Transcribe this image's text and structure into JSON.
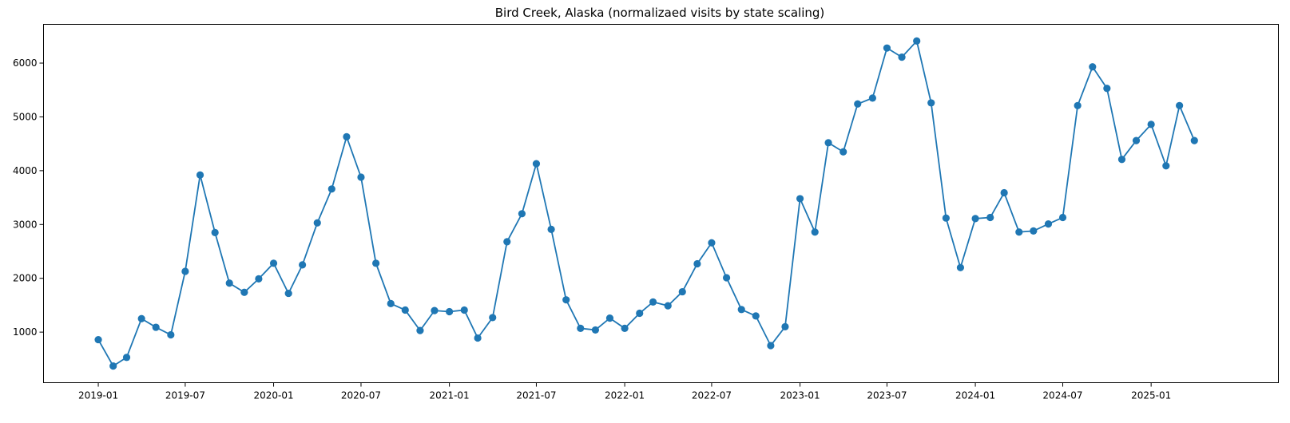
{
  "chart_data": {
    "type": "line",
    "title": "Bird Creek, Alaska (normalizaed visits by state scaling)",
    "xlabel": "",
    "ylabel": "",
    "x_ticks": [
      "2019-01",
      "2019-07",
      "2020-01",
      "2020-07",
      "2021-01",
      "2021-07",
      "2022-01",
      "2022-07",
      "2023-01",
      "2023-07",
      "2024-01",
      "2024-07",
      "2025-01"
    ],
    "y_ticks": [
      1000,
      2000,
      3000,
      4000,
      5000,
      6000
    ],
    "xlim": [
      "2018-09-09",
      "2025-09-23"
    ],
    "ylim": [
      60,
      6720
    ],
    "grid": false,
    "marker": "circle",
    "color": "#1f77b4",
    "series": [
      {
        "x": [
          "2019-01",
          "2019-02",
          "2019-03",
          "2019-04",
          "2019-05",
          "2019-06",
          "2019-07",
          "2019-08",
          "2019-09",
          "2019-10",
          "2019-11",
          "2019-12",
          "2020-01",
          "2020-02",
          "2020-03",
          "2020-04",
          "2020-05",
          "2020-06",
          "2020-07",
          "2020-08",
          "2020-09",
          "2020-10",
          "2020-11",
          "2020-12",
          "2021-01",
          "2021-02",
          "2021-03",
          "2021-04",
          "2021-05",
          "2021-06",
          "2021-07",
          "2021-08",
          "2021-09",
          "2021-10",
          "2021-11",
          "2021-12",
          "2022-01",
          "2022-02",
          "2022-03",
          "2022-04",
          "2022-05",
          "2022-06",
          "2022-07",
          "2022-08",
          "2022-09",
          "2022-10",
          "2022-11",
          "2022-12",
          "2023-01",
          "2023-02",
          "2023-03",
          "2023-04",
          "2023-05",
          "2023-06",
          "2023-07",
          "2023-08",
          "2023-09",
          "2023-10",
          "2023-11",
          "2023-12",
          "2024-01",
          "2024-02",
          "2024-03",
          "2024-04",
          "2024-05",
          "2024-06",
          "2024-07",
          "2024-08",
          "2024-09",
          "2024-10",
          "2024-11",
          "2024-12",
          "2025-01",
          "2025-02",
          "2025-03",
          "2025-04"
        ],
        "values": [
          860,
          370,
          530,
          1250,
          1090,
          950,
          2130,
          3920,
          2850,
          1910,
          1740,
          1990,
          2280,
          1720,
          2250,
          3030,
          3660,
          4630,
          3880,
          2280,
          1530,
          1410,
          1030,
          1400,
          1380,
          1410,
          890,
          1270,
          2680,
          3200,
          4130,
          2910,
          1600,
          1070,
          1040,
          1260,
          1070,
          1350,
          1560,
          1490,
          1750,
          2270,
          2660,
          2010,
          1420,
          1300,
          750,
          1100,
          3480,
          2860,
          4520,
          4350,
          5240,
          5350,
          6280,
          6110,
          6410,
          5260,
          3120,
          2200,
          3110,
          3130,
          3590,
          2860,
          2880,
          3010,
          3130,
          5210,
          5930,
          5530,
          4210,
          4560,
          4860,
          4090,
          5210,
          4560
        ]
      }
    ]
  }
}
